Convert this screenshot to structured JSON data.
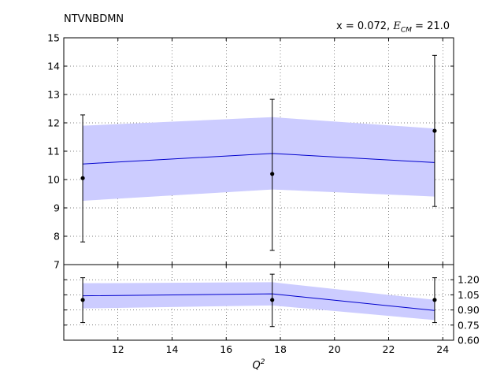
{
  "title_left": "NTVNBDMN",
  "title_right": {
    "x_text": "x = 0.072, ",
    "ecm_var": "E",
    "ecm_sub": "CM",
    "ecm_value": " = 21.0"
  },
  "chart_data": [
    {
      "type": "line",
      "panel": "main",
      "x": [
        10.7,
        17.7,
        23.7
      ],
      "band_lower": [
        9.25,
        9.65,
        9.4
      ],
      "band_upper": [
        11.9,
        12.2,
        11.8
      ],
      "line": [
        10.55,
        10.92,
        10.6
      ],
      "points": {
        "y": [
          10.05,
          10.2,
          11.72
        ],
        "err_low": [
          7.8,
          7.5,
          9.05
        ],
        "err_high": [
          12.28,
          12.83,
          14.38
        ]
      },
      "xlim": [
        10.0,
        24.4
      ],
      "ylim": [
        7,
        15
      ],
      "yticks": [
        7,
        8,
        9,
        10,
        11,
        12,
        13,
        14,
        15
      ],
      "grid": true,
      "colors": {
        "band": "#ccccff",
        "line": "#0000cc",
        "points": "#000000"
      }
    },
    {
      "type": "line",
      "panel": "ratio",
      "x": [
        10.7,
        17.7,
        23.7
      ],
      "band_lower": [
        0.915,
        0.945,
        0.8
      ],
      "band_upper": [
        1.165,
        1.175,
        1.0
      ],
      "line": [
        1.04,
        1.06,
        0.895
      ],
      "points": {
        "y": [
          1.0,
          1.0,
          1.0
        ],
        "err_low": [
          0.775,
          0.735,
          0.775
        ],
        "err_high": [
          1.22,
          1.255,
          1.22
        ]
      },
      "xlim": [
        10.0,
        24.4
      ],
      "ylim": [
        0.6,
        1.35
      ],
      "yticks": [
        0.6,
        0.75,
        0.9,
        1.05,
        1.2
      ],
      "ytick_labels": [
        "0.60",
        "0.75",
        "0.90",
        "1.05",
        "1.20"
      ],
      "xticks": [
        12,
        14,
        16,
        18,
        20,
        22,
        24
      ],
      "xlabel_var": "Q",
      "xlabel_sup": "2",
      "grid": true,
      "colors": {
        "band": "#ccccff",
        "line": "#0000cc",
        "points": "#000000"
      }
    }
  ]
}
